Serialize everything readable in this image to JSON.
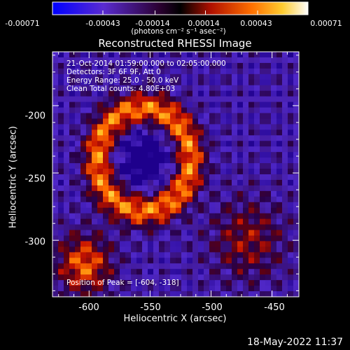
{
  "colorbar": {
    "tick_labels": [
      "-0.00071",
      "-0.00043",
      "-0.00014",
      "0.00014",
      "0.00043",
      "0.00071"
    ],
    "units": "(photons cm⁻² s⁻¹ asec⁻²)"
  },
  "plot": {
    "title": "Reconstructed RHESSI Image",
    "info_lines": [
      "21-Oct-2014 01:59:00.000 to 02:05:00.000",
      "Detectors: 3F 6F 9F, Att 0",
      "Energy Range: 25.0 - 50.0 keV",
      "Clean     Total counts: 4.80E+03"
    ],
    "peak_text": "Position of Peak = [-604, -318]"
  },
  "footer": {
    "date": "18-May-2022 11:37"
  },
  "chart_data": {
    "type": "heatmap",
    "title": "Reconstructed RHESSI Image",
    "xlabel": "Heliocentric X (arcsec)",
    "ylabel": "Heliocentric Y (arcsec)",
    "xlim": [
      -630,
      -428
    ],
    "ylim": [
      -342,
      -160
    ],
    "x_ticks": [
      -600,
      -550,
      -500,
      -450
    ],
    "y_ticks": [
      -300,
      -250,
      -200
    ],
    "colorbar_range": [
      -0.00071,
      0.00071
    ],
    "colormap": "red-temperature (blue negative to white positive)",
    "peak_position": [
      -604,
      -318
    ]
  }
}
